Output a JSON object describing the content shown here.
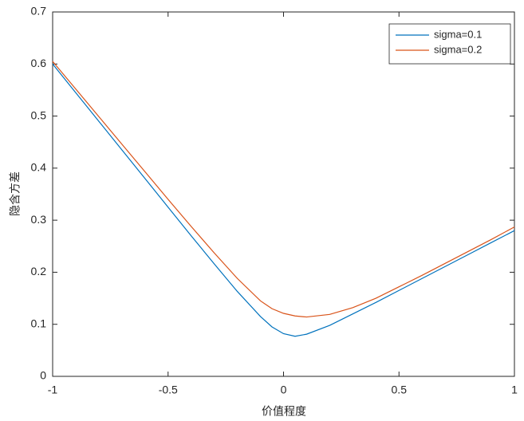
{
  "chart_data": {
    "type": "line",
    "xlabel": "价值程度",
    "ylabel": "隐含方差",
    "x": [
      -1,
      -0.9,
      -0.8,
      -0.7,
      -0.6,
      -0.5,
      -0.4,
      -0.3,
      -0.2,
      -0.1,
      -0.05,
      0,
      0.05,
      0.1,
      0.2,
      0.3,
      0.4,
      0.5,
      0.6,
      0.7,
      0.8,
      0.9,
      1
    ],
    "series": [
      {
        "name": "sigma=0.1",
        "color": "#0072bd",
        "values": [
          0.6,
          0.545,
          0.49,
          0.435,
          0.38,
          0.325,
          0.27,
          0.216,
          0.163,
          0.115,
          0.095,
          0.082,
          0.077,
          0.081,
          0.098,
          0.12,
          0.142,
          0.165,
          0.188,
          0.211,
          0.234,
          0.257,
          0.28
        ]
      },
      {
        "name": "sigma=0.2",
        "color": "#d95319",
        "values": [
          0.605,
          0.552,
          0.499,
          0.446,
          0.393,
          0.34,
          0.288,
          0.237,
          0.188,
          0.145,
          0.13,
          0.121,
          0.116,
          0.114,
          0.119,
          0.132,
          0.15,
          0.172,
          0.194,
          0.217,
          0.24,
          0.263,
          0.287
        ]
      }
    ],
    "xlim": [
      -1,
      1
    ],
    "xticks": [
      -1,
      -0.5,
      0,
      0.5,
      1
    ],
    "ylim": [
      0,
      0.7
    ],
    "yticks": [
      0,
      0.1,
      0.2,
      0.3,
      0.4,
      0.5,
      0.6,
      0.7
    ],
    "grid": false,
    "legend": "northeast"
  }
}
